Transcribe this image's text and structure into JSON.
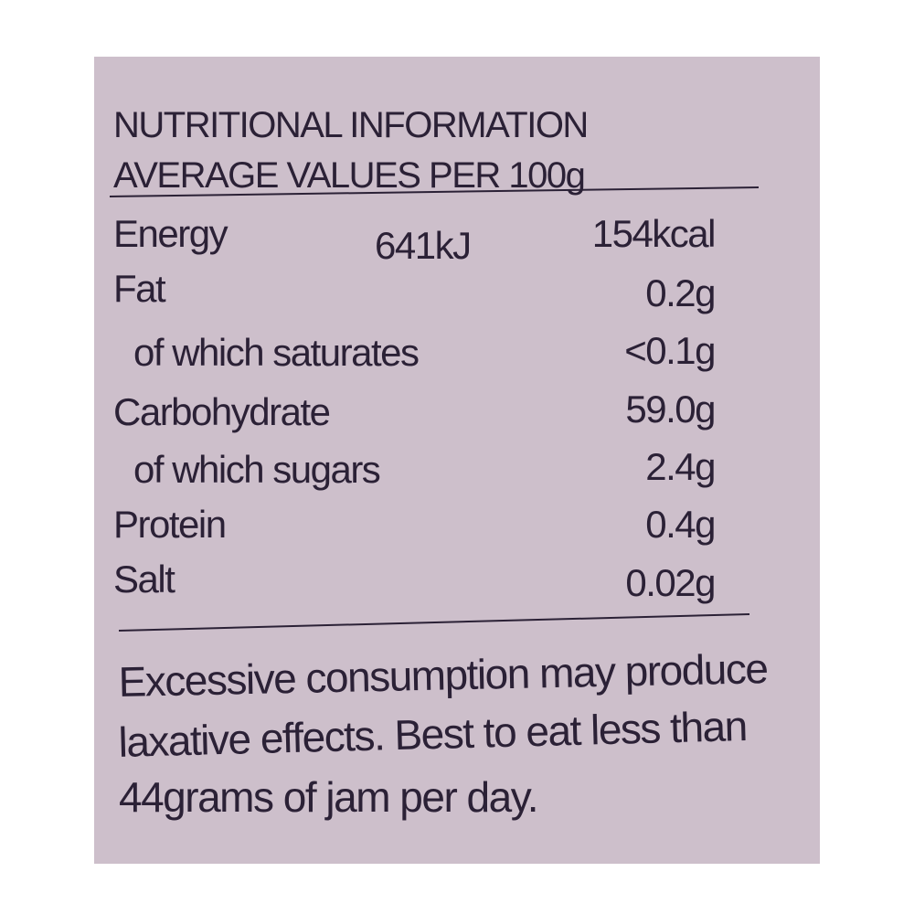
{
  "header": {
    "title": "NUTRITIONAL INFORMATION",
    "subtitle": "AVERAGE VALUES PER 100g"
  },
  "table": {
    "rows": [
      [
        "Energy",
        "641kJ",
        "154kcal"
      ],
      [
        "Fat",
        "0.2g"
      ],
      [
        "of which saturates",
        "<0.1g"
      ],
      [
        "Carbohydrate",
        "59.0g"
      ],
      [
        "of which sugars",
        "2.4g"
      ],
      [
        "Protein",
        "0.4g"
      ],
      [
        "Salt",
        "0.02g"
      ]
    ]
  },
  "note": {
    "lines": [
      "Excessive consumption may produce",
      "laxative effects. Best to eat less than",
      "44grams of jam per day."
    ]
  }
}
